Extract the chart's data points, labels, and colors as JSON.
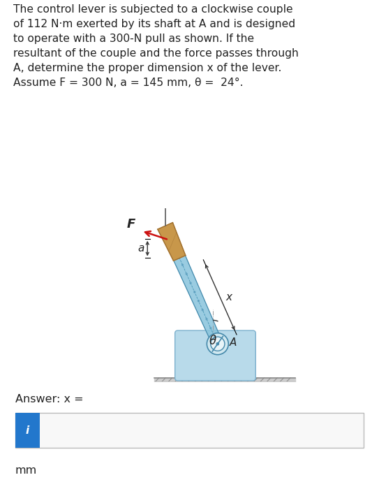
{
  "title_text": "The control lever is subjected to a clockwise couple\nof 112 N·m exerted by its shaft at A and is designed\nto operate with a 300-N pull as shown. If the\nresultant of the couple and the force passes through\nA, determine the proper dimension x of the lever.\nAssume F = 300 N, a = 145 mm, θ =  24°.",
  "answer_label": "Answer: x =",
  "unit_label": "mm",
  "bg_color": "#ffffff",
  "text_color": "#222222",
  "lever_color_blue": "#88c4dc",
  "lever_color_dark": "#4488aa",
  "handle_color_top": "#c8974a",
  "handle_color_bot": "#a07030",
  "base_color": "#b8daea",
  "base_edge": "#7aafcc",
  "force_color": "#cc1111",
  "ground_color": "#cccccc",
  "input_bg": "#f8f8f8",
  "input_border": "#bbbbbb",
  "info_btn_color": "#2277cc",
  "theta_deg": 24,
  "fig_width": 5.43,
  "fig_height": 7.0,
  "dpi": 100
}
